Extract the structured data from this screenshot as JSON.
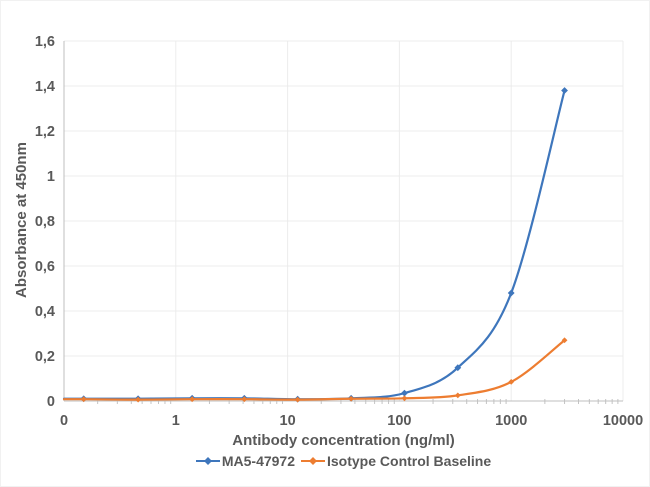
{
  "styles": {
    "background": "#FFFFFF",
    "text_color": "#595959",
    "grid_color": "#ECECEC",
    "axis_color": "#BFBFBF",
    "minor_tick_color": "#C4C4C4"
  },
  "chart_data": {
    "type": "line",
    "title": "",
    "xlabel": "Antibody concentration (ng/ml)",
    "ylabel": "Absorbance at 450nm",
    "x_scale": "log",
    "xlim": [
      0.1,
      10000
    ],
    "ylim": [
      0,
      1.6
    ],
    "grid": true,
    "legend_position": "bottom",
    "x_ticks": [
      {
        "value": 0.1,
        "label": "0"
      },
      {
        "value": 1,
        "label": "1"
      },
      {
        "value": 10,
        "label": "10"
      },
      {
        "value": 100,
        "label": "100"
      },
      {
        "value": 1000,
        "label": "1000"
      },
      {
        "value": 10000,
        "label": "10000"
      }
    ],
    "y_ticks": [
      {
        "value": 0,
        "label": "0"
      },
      {
        "value": 0.2,
        "label": "0,2"
      },
      {
        "value": 0.4,
        "label": "0,4"
      },
      {
        "value": 0.6,
        "label": "0,6"
      },
      {
        "value": 0.8,
        "label": "0,8"
      },
      {
        "value": 1,
        "label": "1"
      },
      {
        "value": 1.2,
        "label": "1,2"
      },
      {
        "value": 1.4,
        "label": "1,4"
      },
      {
        "value": 1.6,
        "label": "1,6"
      }
    ],
    "x": [
      0.15,
      0.46,
      1.4,
      4.1,
      12.3,
      37,
      111,
      333,
      1000,
      3000
    ],
    "series": [
      {
        "name": "MA5-47972",
        "color": "#3E76BC",
        "marker": "diamond",
        "values": [
          0.01,
          0.01,
          0.012,
          0.012,
          0.008,
          0.012,
          0.035,
          0.148,
          0.48,
          1.38
        ]
      },
      {
        "name": "Isotype Control Baseline",
        "color": "#ED7D31",
        "marker": "diamond",
        "values": [
          0.008,
          0.006,
          0.008,
          0.008,
          0.006,
          0.01,
          0.012,
          0.025,
          0.085,
          0.27
        ]
      }
    ]
  }
}
